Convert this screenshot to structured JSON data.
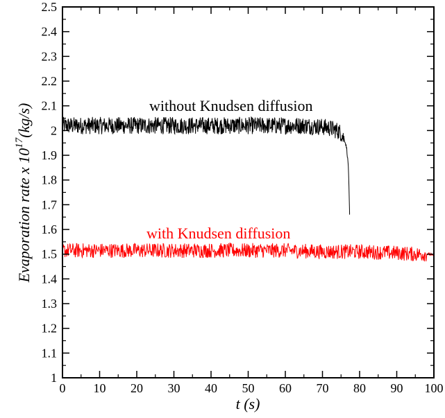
{
  "chart_data": {
    "type": "line",
    "xlabel": "t (s)",
    "ylabel": {
      "main": "Evaporation rate x 10",
      "exponent": "17",
      "unit": "(kg/s)"
    },
    "xlim": [
      0,
      100
    ],
    "ylim": [
      1.0,
      2.5
    ],
    "xticks": [
      "0",
      "10",
      "20",
      "30",
      "40",
      "50",
      "60",
      "70",
      "80",
      "90",
      "100"
    ],
    "yticks": [
      "1",
      "1.1",
      "1.2",
      "1.3",
      "1.4",
      "1.5",
      "1.6",
      "1.7",
      "1.8",
      "1.9",
      "2",
      "2.1",
      "2.2",
      "2.3",
      "2.4",
      "2.5"
    ],
    "grid": false,
    "legend": "none",
    "annotations": [
      {
        "text": "without Knudsen diffusion",
        "color": "#000000"
      },
      {
        "text": "with Knudsen diffusion",
        "color": "#ff0000"
      }
    ],
    "series": [
      {
        "color": "#000000",
        "x": [
          0,
          10,
          20,
          30,
          40,
          50,
          60,
          65,
          70,
          72,
          74,
          75,
          76,
          76.5,
          77,
          77.3
        ],
        "y": [
          2.02,
          2.02,
          2.02,
          2.02,
          2.02,
          2.02,
          2.02,
          2.02,
          2.015,
          2.01,
          2.0,
          1.99,
          1.96,
          1.93,
          1.85,
          1.66
        ],
        "noise_amplitude": 0.035
      },
      {
        "color": "#ff0000",
        "x": [
          0,
          10,
          20,
          30,
          40,
          50,
          60,
          70,
          80,
          90,
          95,
          98,
          99,
          100
        ],
        "y": [
          1.515,
          1.515,
          1.515,
          1.515,
          1.515,
          1.515,
          1.515,
          1.51,
          1.51,
          1.505,
          1.5,
          1.5,
          1.5,
          1.49
        ],
        "noise_amplitude": 0.03
      }
    ]
  }
}
